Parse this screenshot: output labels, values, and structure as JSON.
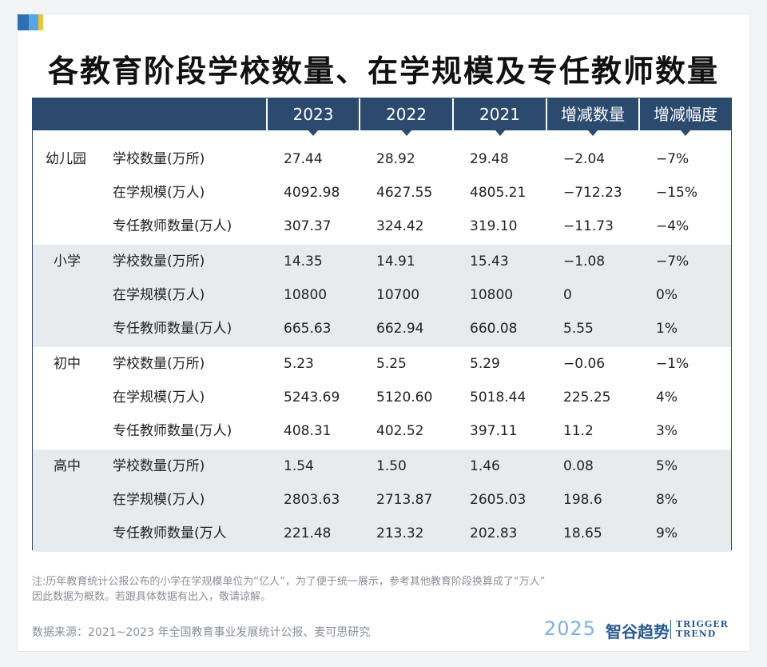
{
  "title": "各教育阶段学校数量、在学规模及专任教师数量",
  "table": {
    "headers": [
      "2023",
      "2022",
      "2021",
      "增减数量",
      "增减幅度"
    ],
    "groups": [
      {
        "category": "幼儿园",
        "rows": [
          {
            "metric": "学校数量(万所)",
            "values": [
              "27.44",
              "28.92",
              "29.48",
              "−2.04",
              "−7%"
            ]
          },
          {
            "metric": "在学规模(万人)",
            "values": [
              "4092.98",
              "4627.55",
              "4805.21",
              "−712.23",
              "−15%"
            ]
          },
          {
            "metric": "专任教师数量(万人)",
            "values": [
              "307.37",
              "324.42",
              "319.10",
              "−11.73",
              "−4%"
            ]
          }
        ]
      },
      {
        "category": "小学",
        "rows": [
          {
            "metric": "学校数量(万所)",
            "values": [
              "14.35",
              "14.91",
              "15.43",
              "−1.08",
              "−7%"
            ]
          },
          {
            "metric": "在学规模(万人)",
            "values": [
              "10800",
              "10700",
              "10800",
              "0",
              "0%"
            ]
          },
          {
            "metric": "专任教师数量(万人)",
            "values": [
              "665.63",
              "662.94",
              "660.08",
              "5.55",
              "1%"
            ]
          }
        ]
      },
      {
        "category": "初中",
        "rows": [
          {
            "metric": "学校数量(万所)",
            "values": [
              "5.23",
              "5.25",
              "5.29",
              "−0.06",
              "−1%"
            ]
          },
          {
            "metric": "在学规模(万人)",
            "values": [
              "5243.69",
              "5120.60",
              "5018.44",
              "225.25",
              "4%"
            ]
          },
          {
            "metric": "专任教师数量(万人)",
            "values": [
              "408.31",
              "402.52",
              "397.11",
              "11.2",
              "3%"
            ]
          }
        ]
      },
      {
        "category": "高中",
        "rows": [
          {
            "metric": "学校数量(万所)",
            "values": [
              "1.54",
              "1.50",
              "1.46",
              "0.08",
              "5%"
            ]
          },
          {
            "metric": "在学规模(万人)",
            "values": [
              "2803.63",
              "2713.87",
              "2605.03",
              "198.6",
              "8%"
            ]
          },
          {
            "metric": "专任教师数量(万人",
            "values": [
              "221.48",
              "213.32",
              "202.83",
              "18.65",
              "9%"
            ]
          }
        ]
      }
    ]
  },
  "note_line1": "注:历年教育统计公报公布的小学在学规模单位为“亿人”，为了便于统一展示，参考其他教育阶段换算成了“万人”",
  "note_line2": "因此数据为概数。若跟具体数据有出入，敬请谅解。",
  "source": "数据来源：2021~2023 年全国教育事业发展统计公报、麦可思研究",
  "brand": {
    "year": "2025",
    "name": "智谷趋势",
    "en_line1": "TRIGGER",
    "en_line2": "TREND"
  },
  "colors": {
    "header_bg": "#2c4a6e",
    "shade": "#e8ebee",
    "accent_blue": "#2f6fb3",
    "accent_yellow": "#f1c33a"
  }
}
